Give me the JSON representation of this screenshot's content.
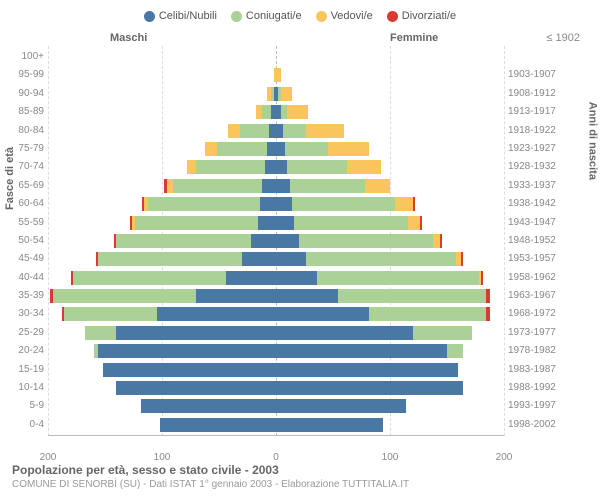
{
  "chart": {
    "type": "population-pyramid",
    "title": "Popolazione per età, sesso e stato civile - 2003",
    "subtitle": "COMUNE DI SENORBÌ (SU) - Dati ISTAT 1° gennaio 2003 - Elaborazione TUTTITALIA.IT",
    "left_axis_title": "Fasce di età",
    "right_axis_title": "Anni di nascita",
    "male_label": "Maschi",
    "female_label": "Femmine",
    "top_right_label": "≤ 1902",
    "legend": [
      {
        "label": "Celibi/Nubili",
        "color": "#4a78a4"
      },
      {
        "label": "Coniugati/e",
        "color": "#abd196"
      },
      {
        "label": "Vedovi/e",
        "color": "#fbc55e"
      },
      {
        "label": "Divorziati/e",
        "color": "#db3a34"
      }
    ],
    "colors": {
      "celibi": "#4a78a4",
      "coniugati": "#abd196",
      "vedovi": "#fbc55e",
      "divorziati": "#db3a34",
      "grid": "#dddddd",
      "axis": "#bbbbbb",
      "text": "#888888"
    },
    "x_axis": {
      "min": -200,
      "max": 200,
      "ticks": [
        -200,
        -100,
        0,
        100,
        200
      ],
      "tick_labels": [
        "200",
        "100",
        "0",
        "100",
        "200"
      ]
    },
    "rows": [
      {
        "age": "100+",
        "birth": "",
        "m": {
          "c": 0,
          "m": 0,
          "v": 0,
          "d": 0
        },
        "f": {
          "c": 0,
          "m": 0,
          "v": 0,
          "d": 0
        }
      },
      {
        "age": "95-99",
        "birth": "1903-1907",
        "m": {
          "c": 0,
          "m": 0,
          "v": 2,
          "d": 0
        },
        "f": {
          "c": 0,
          "m": 0,
          "v": 4,
          "d": 0
        }
      },
      {
        "age": "90-94",
        "birth": "1908-1912",
        "m": {
          "c": 2,
          "m": 2,
          "v": 4,
          "d": 0
        },
        "f": {
          "c": 2,
          "m": 2,
          "v": 10,
          "d": 0
        }
      },
      {
        "age": "85-89",
        "birth": "1913-1917",
        "m": {
          "c": 4,
          "m": 8,
          "v": 6,
          "d": 0
        },
        "f": {
          "c": 4,
          "m": 6,
          "v": 18,
          "d": 0
        }
      },
      {
        "age": "80-84",
        "birth": "1918-1922",
        "m": {
          "c": 6,
          "m": 26,
          "v": 10,
          "d": 0
        },
        "f": {
          "c": 6,
          "m": 20,
          "v": 34,
          "d": 0
        }
      },
      {
        "age": "75-79",
        "birth": "1923-1927",
        "m": {
          "c": 8,
          "m": 44,
          "v": 10,
          "d": 0
        },
        "f": {
          "c": 8,
          "m": 38,
          "v": 36,
          "d": 0
        }
      },
      {
        "age": "70-74",
        "birth": "1928-1932",
        "m": {
          "c": 10,
          "m": 60,
          "v": 8,
          "d": 0
        },
        "f": {
          "c": 10,
          "m": 52,
          "v": 30,
          "d": 0
        }
      },
      {
        "age": "65-69",
        "birth": "1933-1937",
        "m": {
          "c": 12,
          "m": 78,
          "v": 6,
          "d": 2
        },
        "f": {
          "c": 12,
          "m": 66,
          "v": 22,
          "d": 0
        }
      },
      {
        "age": "60-64",
        "birth": "1938-1942",
        "m": {
          "c": 14,
          "m": 98,
          "v": 4,
          "d": 2
        },
        "f": {
          "c": 14,
          "m": 90,
          "v": 16,
          "d": 2
        }
      },
      {
        "age": "55-59",
        "birth": "1943-1947",
        "m": {
          "c": 16,
          "m": 108,
          "v": 2,
          "d": 2
        },
        "f": {
          "c": 16,
          "m": 100,
          "v": 10,
          "d": 2
        }
      },
      {
        "age": "50-54",
        "birth": "1948-1952",
        "m": {
          "c": 22,
          "m": 118,
          "v": 0,
          "d": 2
        },
        "f": {
          "c": 20,
          "m": 118,
          "v": 6,
          "d": 2
        }
      },
      {
        "age": "45-49",
        "birth": "1953-1957",
        "m": {
          "c": 30,
          "m": 126,
          "v": 0,
          "d": 2
        },
        "f": {
          "c": 26,
          "m": 132,
          "v": 4,
          "d": 2
        }
      },
      {
        "age": "40-44",
        "birth": "1958-1962",
        "m": {
          "c": 44,
          "m": 134,
          "v": 0,
          "d": 2
        },
        "f": {
          "c": 36,
          "m": 142,
          "v": 2,
          "d": 2
        }
      },
      {
        "age": "35-39",
        "birth": "1963-1967",
        "m": {
          "c": 70,
          "m": 126,
          "v": 0,
          "d": 2
        },
        "f": {
          "c": 54,
          "m": 130,
          "v": 0,
          "d": 4
        }
      },
      {
        "age": "30-34",
        "birth": "1968-1972",
        "m": {
          "c": 104,
          "m": 82,
          "v": 0,
          "d": 2
        },
        "f": {
          "c": 82,
          "m": 102,
          "v": 0,
          "d": 4
        }
      },
      {
        "age": "25-29",
        "birth": "1973-1977",
        "m": {
          "c": 140,
          "m": 28,
          "v": 0,
          "d": 0
        },
        "f": {
          "c": 120,
          "m": 52,
          "v": 0,
          "d": 0
        }
      },
      {
        "age": "20-24",
        "birth": "1978-1982",
        "m": {
          "c": 156,
          "m": 4,
          "v": 0,
          "d": 0
        },
        "f": {
          "c": 150,
          "m": 14,
          "v": 0,
          "d": 0
        }
      },
      {
        "age": "15-19",
        "birth": "1983-1987",
        "m": {
          "c": 152,
          "m": 0,
          "v": 0,
          "d": 0
        },
        "f": {
          "c": 160,
          "m": 0,
          "v": 0,
          "d": 0
        }
      },
      {
        "age": "10-14",
        "birth": "1988-1992",
        "m": {
          "c": 140,
          "m": 0,
          "v": 0,
          "d": 0
        },
        "f": {
          "c": 164,
          "m": 0,
          "v": 0,
          "d": 0
        }
      },
      {
        "age": "5-9",
        "birth": "1993-1997",
        "m": {
          "c": 118,
          "m": 0,
          "v": 0,
          "d": 0
        },
        "f": {
          "c": 114,
          "m": 0,
          "v": 0,
          "d": 0
        }
      },
      {
        "age": "0-4",
        "birth": "1998-2002",
        "m": {
          "c": 102,
          "m": 0,
          "v": 0,
          "d": 0
        },
        "f": {
          "c": 94,
          "m": 0,
          "v": 0,
          "d": 0
        }
      }
    ]
  }
}
